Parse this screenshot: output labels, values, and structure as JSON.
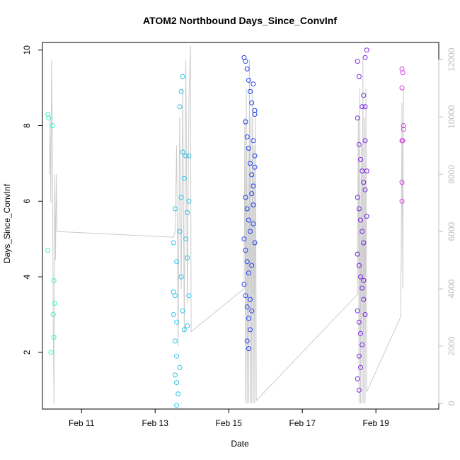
{
  "chart_data": {
    "type": "scatter",
    "title": "ATOM2 Northbound Days_Since_ConvInf",
    "xlabel": "Date",
    "ylabel": "Days_Since_ConvInf",
    "x_axis": {
      "type": "date",
      "range": [
        "2019-02-09T22:30",
        "2019-02-20T17:00"
      ],
      "ticks": [
        {
          "date": "2019-02-11",
          "label": "Feb 11"
        },
        {
          "date": "2019-02-13",
          "label": "Feb 13"
        },
        {
          "date": "2019-02-15",
          "label": "Feb 15"
        },
        {
          "date": "2019-02-17",
          "label": "Feb 17"
        },
        {
          "date": "2019-02-19",
          "label": "Feb 19"
        }
      ]
    },
    "y_axis_left": {
      "range": [
        0.5,
        10.2
      ],
      "ticks": [
        2,
        4,
        6,
        8,
        10
      ],
      "tick_labels": [
        "2",
        "4",
        "6",
        "8",
        "10"
      ]
    },
    "y_axis_right": {
      "range": [
        -200,
        12600
      ],
      "ticks": [
        0,
        2000,
        4000,
        6000,
        8000,
        10000,
        12000
      ],
      "tick_labels": [
        "0",
        "2000",
        "4000",
        "6000",
        "8000",
        "10000",
        "12000"
      ],
      "color": "#bdbdbd"
    },
    "line_series": {
      "axis": "right",
      "color": "#cccccc",
      "points": [
        [
          "2019-02-10T03:00",
          8000
        ],
        [
          "2019-02-10T03:30",
          10000
        ],
        [
          "2019-02-10T04:00",
          7000
        ],
        [
          "2019-02-10T04:30",
          12000
        ],
        [
          "2019-02-10T05:00",
          9000
        ],
        [
          "2019-02-10T05:30",
          3000
        ],
        [
          "2019-02-10T06:00",
          0
        ],
        [
          "2019-02-10T06:30",
          8000
        ],
        [
          "2019-02-10T07:00",
          5000
        ],
        [
          "2019-02-10T07:30",
          8000
        ],
        [
          "2019-02-10T08:00",
          6000
        ],
        [
          "2019-02-13T12:00",
          5800
        ],
        [
          "2019-02-13T13:00",
          6000
        ],
        [
          "2019-02-13T14:00",
          9000
        ],
        [
          "2019-02-13T15:00",
          2000
        ],
        [
          "2019-02-13T16:00",
          10000
        ],
        [
          "2019-02-13T17:00",
          4000
        ],
        [
          "2019-02-13T18:00",
          11000
        ],
        [
          "2019-02-13T19:00",
          2500
        ],
        [
          "2019-02-13T20:00",
          12000
        ],
        [
          "2019-02-13T21:00",
          3500
        ],
        [
          "2019-02-13T22:00",
          10500
        ],
        [
          "2019-02-13T23:00",
          12500
        ],
        [
          "2019-02-13T23:30",
          2500
        ],
        [
          "2019-02-15T10:00",
          4000
        ],
        [
          "2019-02-15T10:30",
          10000
        ],
        [
          "2019-02-15T11:00",
          0
        ],
        [
          "2019-02-15T11:30",
          11000
        ],
        [
          "2019-02-15T12:00",
          0
        ],
        [
          "2019-02-15T12:30",
          9000
        ],
        [
          "2019-02-15T13:00",
          0
        ],
        [
          "2019-02-15T13:30",
          12000
        ],
        [
          "2019-02-15T14:00",
          0
        ],
        [
          "2019-02-15T14:30",
          10000
        ],
        [
          "2019-02-15T15:00",
          0
        ],
        [
          "2019-02-15T15:30",
          11000
        ],
        [
          "2019-02-15T16:00",
          0
        ],
        [
          "2019-02-15T16:30",
          9000
        ],
        [
          "2019-02-15T17:00",
          0
        ],
        [
          "2019-02-15T17:30",
          10000
        ],
        [
          "2019-02-15T18:00",
          100
        ],
        [
          "2019-02-18T12:00",
          3800
        ],
        [
          "2019-02-18T12:30",
          10000
        ],
        [
          "2019-02-18T13:00",
          0
        ],
        [
          "2019-02-18T13:30",
          11000
        ],
        [
          "2019-02-18T14:00",
          0
        ],
        [
          "2019-02-18T14:30",
          9000
        ],
        [
          "2019-02-18T15:00",
          0
        ],
        [
          "2019-02-18T15:30",
          12000
        ],
        [
          "2019-02-18T16:00",
          0
        ],
        [
          "2019-02-18T16:30",
          10000
        ],
        [
          "2019-02-18T17:00",
          0
        ],
        [
          "2019-02-18T17:30",
          11000
        ],
        [
          "2019-02-18T18:00",
          400
        ],
        [
          "2019-02-19T16:00",
          3000
        ],
        [
          "2019-02-19T16:30",
          5000
        ],
        [
          "2019-02-19T17:00",
          10500
        ],
        [
          "2019-02-19T17:30",
          4000
        ],
        [
          "2019-02-19T18:00",
          11000
        ]
      ]
    },
    "scatter_groups": [
      {
        "color": "#3ff0c8",
        "points": [
          [
            "2019-02-10T02:00",
            8.3
          ],
          [
            "2019-02-10T02:30",
            8.2
          ],
          [
            "2019-02-10T02:00",
            4.7
          ],
          [
            "2019-02-10T05:00",
            8.0
          ],
          [
            "2019-02-10T06:00",
            3.9
          ],
          [
            "2019-02-10T06:30",
            3.3
          ],
          [
            "2019-02-10T05:30",
            3.0
          ],
          [
            "2019-02-10T06:00",
            2.4
          ],
          [
            "2019-02-10T04:00",
            2.0
          ]
        ]
      },
      {
        "color": "#2bc4e8",
        "points": [
          [
            "2019-02-13T12:00",
            4.9
          ],
          [
            "2019-02-13T13:00",
            5.8
          ],
          [
            "2019-02-13T14:00",
            4.4
          ],
          [
            "2019-02-13T12:00",
            3.6
          ],
          [
            "2019-02-13T13:00",
            3.5
          ],
          [
            "2019-02-13T12:00",
            3.0
          ],
          [
            "2019-02-13T14:00",
            2.8
          ],
          [
            "2019-02-13T13:00",
            2.3
          ],
          [
            "2019-02-13T14:00",
            1.9
          ],
          [
            "2019-02-13T13:00",
            1.4
          ],
          [
            "2019-02-13T14:00",
            1.2
          ],
          [
            "2019-02-13T15:00",
            0.9
          ],
          [
            "2019-02-13T14:00",
            0.6
          ],
          [
            "2019-02-13T16:00",
            5.2
          ],
          [
            "2019-02-13T17:00",
            6.1
          ],
          [
            "2019-02-13T18:00",
            7.3
          ],
          [
            "2019-02-13T16:00",
            8.5
          ],
          [
            "2019-02-13T17:00",
            8.9
          ],
          [
            "2019-02-13T18:00",
            9.3
          ],
          [
            "2019-02-13T19:00",
            6.6
          ],
          [
            "2019-02-13T20:00",
            7.2
          ],
          [
            "2019-02-13T17:00",
            4.0
          ],
          [
            "2019-02-13T18:00",
            3.1
          ],
          [
            "2019-02-13T19:00",
            2.6
          ],
          [
            "2019-02-13T16:00",
            1.6
          ],
          [
            "2019-02-13T21:00",
            5.7
          ],
          [
            "2019-02-13T20:00",
            5.0
          ],
          [
            "2019-02-13T22:00",
            6.0
          ],
          [
            "2019-02-13T21:00",
            4.5
          ],
          [
            "2019-02-13T22:00",
            3.5
          ],
          [
            "2019-02-13T21:00",
            2.7
          ],
          [
            "2019-02-13T22:00",
            7.2
          ]
        ]
      },
      {
        "color": "#1f3ff5",
        "points": [
          [
            "2019-02-15T10:00",
            9.8
          ],
          [
            "2019-02-15T11:00",
            9.7
          ],
          [
            "2019-02-15T12:00",
            9.5
          ],
          [
            "2019-02-15T13:00",
            9.2
          ],
          [
            "2019-02-15T14:00",
            8.9
          ],
          [
            "2019-02-15T15:00",
            8.6
          ],
          [
            "2019-02-15T16:00",
            9.1
          ],
          [
            "2019-02-15T17:00",
            8.3
          ],
          [
            "2019-02-15T11:00",
            8.1
          ],
          [
            "2019-02-15T12:00",
            7.7
          ],
          [
            "2019-02-15T13:00",
            7.4
          ],
          [
            "2019-02-15T14:00",
            7.0
          ],
          [
            "2019-02-15T15:00",
            6.7
          ],
          [
            "2019-02-15T16:00",
            6.4
          ],
          [
            "2019-02-15T17:00",
            6.9
          ],
          [
            "2019-02-15T11:00",
            6.1
          ],
          [
            "2019-02-15T12:00",
            5.8
          ],
          [
            "2019-02-15T13:00",
            5.5
          ],
          [
            "2019-02-15T14:00",
            5.2
          ],
          [
            "2019-02-15T10:00",
            5.0
          ],
          [
            "2019-02-15T11:00",
            4.7
          ],
          [
            "2019-02-15T12:00",
            4.4
          ],
          [
            "2019-02-15T13:00",
            4.1
          ],
          [
            "2019-02-15T10:00",
            3.8
          ],
          [
            "2019-02-15T11:00",
            3.5
          ],
          [
            "2019-02-15T12:00",
            3.2
          ],
          [
            "2019-02-15T13:00",
            2.9
          ],
          [
            "2019-02-15T14:00",
            2.6
          ],
          [
            "2019-02-15T12:00",
            2.3
          ],
          [
            "2019-02-15T13:00",
            2.1
          ],
          [
            "2019-02-15T16:00",
            5.9
          ],
          [
            "2019-02-15T17:00",
            4.9
          ],
          [
            "2019-02-15T15:00",
            4.3
          ],
          [
            "2019-02-15T14:00",
            3.4
          ],
          [
            "2019-02-15T15:00",
            3.1
          ],
          [
            "2019-02-15T16:00",
            7.6
          ],
          [
            "2019-02-15T17:00",
            7.2
          ],
          [
            "2019-02-15T15:00",
            6.2
          ],
          [
            "2019-02-15T16:00",
            5.4
          ],
          [
            "2019-02-15T17:00",
            8.4
          ]
        ]
      },
      {
        "color": "#7a22e8",
        "points": [
          [
            "2019-02-18T12:00",
            9.7
          ],
          [
            "2019-02-18T13:00",
            9.3
          ],
          [
            "2019-02-18T15:00",
            8.5
          ],
          [
            "2019-02-18T12:00",
            8.2
          ],
          [
            "2019-02-18T13:00",
            7.5
          ],
          [
            "2019-02-18T14:00",
            7.1
          ],
          [
            "2019-02-18T15:00",
            6.8
          ],
          [
            "2019-02-18T16:00",
            6.5
          ],
          [
            "2019-02-18T12:00",
            6.1
          ],
          [
            "2019-02-18T13:00",
            5.8
          ],
          [
            "2019-02-18T14:00",
            5.5
          ],
          [
            "2019-02-18T15:00",
            5.2
          ],
          [
            "2019-02-18T16:00",
            4.9
          ],
          [
            "2019-02-18T12:00",
            4.6
          ],
          [
            "2019-02-18T13:00",
            4.3
          ],
          [
            "2019-02-18T14:00",
            4.0
          ],
          [
            "2019-02-18T15:00",
            3.7
          ],
          [
            "2019-02-18T16:00",
            3.4
          ],
          [
            "2019-02-18T12:00",
            3.1
          ],
          [
            "2019-02-18T13:00",
            2.8
          ],
          [
            "2019-02-18T14:00",
            2.5
          ],
          [
            "2019-02-18T15:00",
            2.2
          ],
          [
            "2019-02-18T13:00",
            1.9
          ],
          [
            "2019-02-18T14:00",
            1.6
          ],
          [
            "2019-02-18T12:00",
            1.3
          ],
          [
            "2019-02-18T13:00",
            1.0
          ],
          [
            "2019-02-18T16:00",
            8.8
          ],
          [
            "2019-02-18T17:00",
            9.8
          ],
          [
            "2019-02-18T18:00",
            10.0
          ],
          [
            "2019-02-18T17:00",
            8.5
          ],
          [
            "2019-02-18T17:00",
            7.6
          ],
          [
            "2019-02-18T18:00",
            6.8
          ],
          [
            "2019-02-18T17:00",
            6.3
          ],
          [
            "2019-02-18T18:00",
            5.6
          ],
          [
            "2019-02-18T16:00",
            3.9
          ],
          [
            "2019-02-18T17:00",
            3.0
          ]
        ]
      },
      {
        "color": "#d43ee0",
        "points": [
          [
            "2019-02-19T17:00",
            9.5
          ],
          [
            "2019-02-19T17:30",
            9.4
          ],
          [
            "2019-02-19T17:00",
            9.0
          ],
          [
            "2019-02-19T18:00",
            8.0
          ],
          [
            "2019-02-19T18:00",
            7.9
          ],
          [
            "2019-02-19T17:00",
            7.6
          ],
          [
            "2019-02-19T17:30",
            7.6
          ],
          [
            "2019-02-19T17:00",
            6.5
          ],
          [
            "2019-02-19T17:00",
            6.0
          ]
        ]
      }
    ]
  }
}
